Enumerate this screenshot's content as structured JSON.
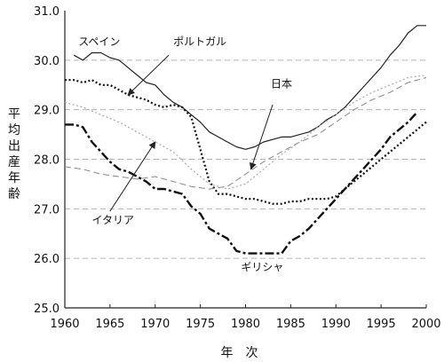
{
  "chart_data": {
    "type": "line",
    "xlabel": "年次",
    "ylabel": "平均出産年齢",
    "xlim": [
      1960,
      2000
    ],
    "ylim": [
      25.0,
      31.0
    ],
    "x_ticks": [
      "1960",
      "1965",
      "1970",
      "1975",
      "1980",
      "1985",
      "1990",
      "1995",
      "2000"
    ],
    "y_ticks": [
      "25.0",
      "26.0",
      "27.0",
      "28.0",
      "29.0",
      "30.0",
      "31.0"
    ],
    "grid": "horizontal dashed",
    "series": [
      {
        "name": "スペイン",
        "color": "#222222",
        "style": "solid",
        "points": [
          [
            1961,
            30.1
          ],
          [
            1962,
            30.0
          ],
          [
            1963,
            30.15
          ],
          [
            1964,
            30.15
          ],
          [
            1965,
            30.05
          ],
          [
            1966,
            30.0
          ],
          [
            1967,
            29.85
          ],
          [
            1968,
            29.7
          ],
          [
            1969,
            29.55
          ],
          [
            1970,
            29.5
          ],
          [
            1971,
            29.3
          ],
          [
            1972,
            29.15
          ],
          [
            1973,
            29.05
          ],
          [
            1974,
            28.9
          ],
          [
            1975,
            28.75
          ],
          [
            1976,
            28.55
          ],
          [
            1977,
            28.45
          ],
          [
            1978,
            28.35
          ],
          [
            1979,
            28.25
          ],
          [
            1980,
            28.2
          ],
          [
            1981,
            28.25
          ],
          [
            1982,
            28.35
          ],
          [
            1983,
            28.4
          ],
          [
            1984,
            28.45
          ],
          [
            1985,
            28.45
          ],
          [
            1986,
            28.5
          ],
          [
            1987,
            28.55
          ],
          [
            1988,
            28.65
          ],
          [
            1989,
            28.8
          ],
          [
            1990,
            28.9
          ],
          [
            1991,
            29.05
          ],
          [
            1992,
            29.25
          ],
          [
            1993,
            29.45
          ],
          [
            1994,
            29.65
          ],
          [
            1995,
            29.85
          ],
          [
            1996,
            30.1
          ],
          [
            1997,
            30.3
          ],
          [
            1998,
            30.55
          ],
          [
            1999,
            30.7
          ],
          [
            2000,
            30.7
          ]
        ]
      },
      {
        "name": "ポルトガル",
        "color": "#111111",
        "style": "dotted",
        "points": [
          [
            1960,
            29.6
          ],
          [
            1961,
            29.6
          ],
          [
            1962,
            29.55
          ],
          [
            1963,
            29.6
          ],
          [
            1964,
            29.5
          ],
          [
            1965,
            29.5
          ],
          [
            1966,
            29.4
          ],
          [
            1967,
            29.3
          ],
          [
            1968,
            29.25
          ],
          [
            1969,
            29.2
          ],
          [
            1970,
            29.1
          ],
          [
            1971,
            29.05
          ],
          [
            1972,
            29.1
          ],
          [
            1973,
            29.05
          ],
          [
            1974,
            28.85
          ],
          [
            1975,
            28.2
          ],
          [
            1976,
            27.55
          ],
          [
            1977,
            27.3
          ],
          [
            1978,
            27.3
          ],
          [
            1979,
            27.25
          ],
          [
            1980,
            27.2
          ],
          [
            1981,
            27.2
          ],
          [
            1982,
            27.15
          ],
          [
            1983,
            27.1
          ],
          [
            1984,
            27.1
          ],
          [
            1985,
            27.15
          ],
          [
            1986,
            27.15
          ],
          [
            1987,
            27.2
          ],
          [
            1988,
            27.2
          ],
          [
            1989,
            27.2
          ],
          [
            1990,
            27.25
          ],
          [
            1991,
            27.4
          ],
          [
            1992,
            27.55
          ],
          [
            1993,
            27.7
          ],
          [
            1994,
            27.85
          ],
          [
            1995,
            28.0
          ],
          [
            1996,
            28.15
          ],
          [
            1997,
            28.3
          ],
          [
            1998,
            28.45
          ],
          [
            1999,
            28.6
          ],
          [
            2000,
            28.75
          ]
        ]
      },
      {
        "name": "日本",
        "color": "#888888",
        "style": "dashed",
        "points": [
          [
            1960,
            27.85
          ],
          [
            1962,
            27.8
          ],
          [
            1964,
            27.7
          ],
          [
            1966,
            27.65
          ],
          [
            1968,
            27.6
          ],
          [
            1970,
            27.65
          ],
          [
            1972,
            27.55
          ],
          [
            1974,
            27.45
          ],
          [
            1976,
            27.4
          ],
          [
            1978,
            27.45
          ],
          [
            1980,
            27.7
          ],
          [
            1982,
            27.95
          ],
          [
            1984,
            28.15
          ],
          [
            1986,
            28.35
          ],
          [
            1988,
            28.5
          ],
          [
            1990,
            28.75
          ],
          [
            1992,
            29.0
          ],
          [
            1994,
            29.2
          ],
          [
            1996,
            29.35
          ],
          [
            1998,
            29.55
          ],
          [
            2000,
            29.65
          ]
        ]
      },
      {
        "name": "イタリア",
        "color": "#aaaaaa",
        "style": "dotted",
        "points": [
          [
            1960,
            29.15
          ],
          [
            1962,
            29.05
          ],
          [
            1964,
            28.9
          ],
          [
            1966,
            28.75
          ],
          [
            1968,
            28.55
          ],
          [
            1970,
            28.35
          ],
          [
            1972,
            28.15
          ],
          [
            1974,
            27.8
          ],
          [
            1976,
            27.5
          ],
          [
            1978,
            27.4
          ],
          [
            1980,
            27.5
          ],
          [
            1982,
            27.8
          ],
          [
            1984,
            28.1
          ],
          [
            1986,
            28.35
          ],
          [
            1988,
            28.65
          ],
          [
            1990,
            28.9
          ],
          [
            1992,
            29.15
          ],
          [
            1994,
            29.35
          ],
          [
            1996,
            29.5
          ],
          [
            1998,
            29.65
          ],
          [
            2000,
            29.7
          ]
        ]
      },
      {
        "name": "ギリシャ",
        "color": "#111111",
        "style": "dashdot",
        "points": [
          [
            1960,
            28.7
          ],
          [
            1961,
            28.7
          ],
          [
            1962,
            28.65
          ],
          [
            1963,
            28.35
          ],
          [
            1964,
            28.15
          ],
          [
            1965,
            27.95
          ],
          [
            1966,
            27.8
          ],
          [
            1967,
            27.75
          ],
          [
            1968,
            27.65
          ],
          [
            1969,
            27.55
          ],
          [
            1970,
            27.4
          ],
          [
            1971,
            27.4
          ],
          [
            1972,
            27.35
          ],
          [
            1973,
            27.3
          ],
          [
            1974,
            27.05
          ],
          [
            1975,
            26.9
          ],
          [
            1976,
            26.6
          ],
          [
            1977,
            26.5
          ],
          [
            1978,
            26.4
          ],
          [
            1979,
            26.15
          ],
          [
            1980,
            26.1
          ],
          [
            1981,
            26.1
          ],
          [
            1982,
            26.1
          ],
          [
            1983,
            26.1
          ],
          [
            1984,
            26.1
          ],
          [
            1985,
            26.35
          ],
          [
            1986,
            26.45
          ],
          [
            1987,
            26.6
          ],
          [
            1988,
            26.8
          ],
          [
            1989,
            27.0
          ],
          [
            1990,
            27.2
          ],
          [
            1991,
            27.4
          ],
          [
            1992,
            27.6
          ],
          [
            1993,
            27.8
          ],
          [
            1994,
            28.0
          ],
          [
            1995,
            28.2
          ],
          [
            1996,
            28.45
          ],
          [
            1997,
            28.6
          ],
          [
            1998,
            28.75
          ],
          [
            1999,
            28.95
          ]
        ]
      }
    ],
    "annotations": [
      {
        "text": "スペイン",
        "series": "スペイン",
        "lx": 1961.5,
        "ly": 30.3
      },
      {
        "text": "ポルトガル",
        "series": "ポルトガル",
        "lx": 1972.0,
        "ly": 30.3,
        "arrow": [
          [
            1971.5,
            30.1
          ],
          [
            1967.0,
            29.3
          ]
        ]
      },
      {
        "text": "日本",
        "series": "日本",
        "lx": 1982.8,
        "ly": 29.45,
        "arrow": [
          [
            1983.0,
            29.1
          ],
          [
            1980.6,
            27.8
          ]
        ]
      },
      {
        "text": "イタリア",
        "series": "イタリア",
        "lx": 1963.0,
        "ly": 26.7,
        "arrow": [
          [
            1965.0,
            26.95
          ],
          [
            1970.0,
            28.35
          ]
        ]
      },
      {
        "text": "ギリシャ",
        "series": "ギリシャ",
        "lx": 1979.5,
        "ly": 25.75
      }
    ]
  }
}
